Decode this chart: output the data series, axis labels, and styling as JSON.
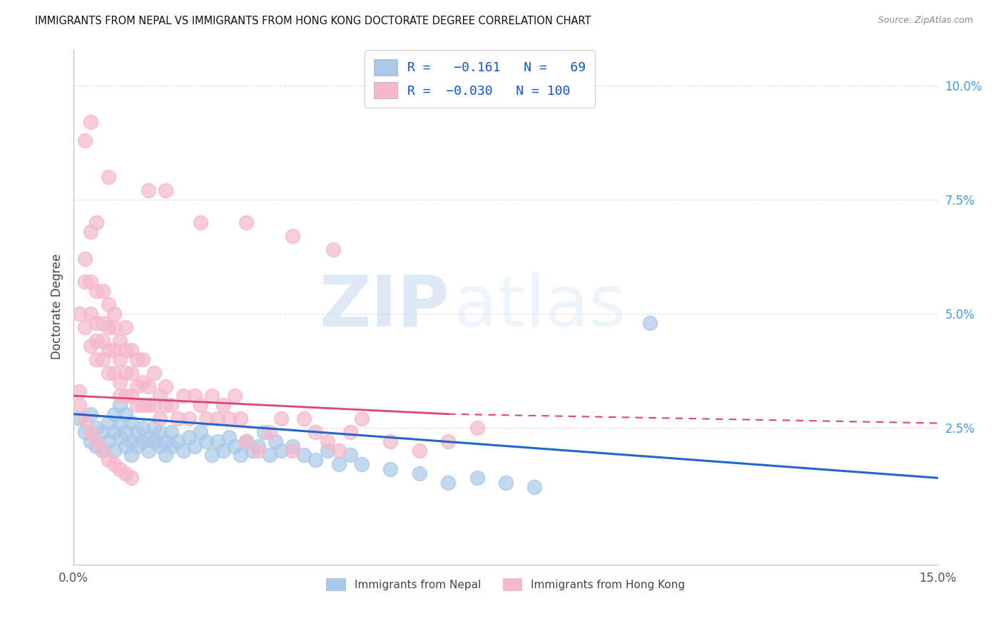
{
  "title": "IMMIGRANTS FROM NEPAL VS IMMIGRANTS FROM HONG KONG DOCTORATE DEGREE CORRELATION CHART",
  "source": "Source: ZipAtlas.com",
  "ylabel": "Doctorate Degree",
  "ytick_labels": [
    "2.5%",
    "5.0%",
    "7.5%",
    "10.0%"
  ],
  "ytick_values": [
    0.025,
    0.05,
    0.075,
    0.1
  ],
  "xlim": [
    0.0,
    0.15
  ],
  "ylim": [
    -0.005,
    0.108
  ],
  "color_nepal": "#aac9e8",
  "color_hongkong": "#f5b8cc",
  "trendline_nepal_color": "#2266cc",
  "trendline_hongkong_color": "#dd4477",
  "watermark_zip": "ZIP",
  "watermark_atlas": "atlas",
  "nepal_scatter": [
    [
      0.001,
      0.027
    ],
    [
      0.002,
      0.024
    ],
    [
      0.003,
      0.022
    ],
    [
      0.003,
      0.028
    ],
    [
      0.004,
      0.025
    ],
    [
      0.004,
      0.021
    ],
    [
      0.005,
      0.024
    ],
    [
      0.005,
      0.02
    ],
    [
      0.006,
      0.026
    ],
    [
      0.006,
      0.022
    ],
    [
      0.007,
      0.028
    ],
    [
      0.007,
      0.024
    ],
    [
      0.007,
      0.02
    ],
    [
      0.008,
      0.026
    ],
    [
      0.008,
      0.023
    ],
    [
      0.008,
      0.03
    ],
    [
      0.009,
      0.028
    ],
    [
      0.009,
      0.024
    ],
    [
      0.009,
      0.021
    ],
    [
      0.01,
      0.026
    ],
    [
      0.01,
      0.022
    ],
    [
      0.01,
      0.019
    ],
    [
      0.011,
      0.024
    ],
    [
      0.011,
      0.021
    ],
    [
      0.012,
      0.025
    ],
    [
      0.012,
      0.022
    ],
    [
      0.013,
      0.023
    ],
    [
      0.013,
      0.02
    ],
    [
      0.014,
      0.022
    ],
    [
      0.014,
      0.025
    ],
    [
      0.015,
      0.021
    ],
    [
      0.015,
      0.024
    ],
    [
      0.016,
      0.022
    ],
    [
      0.016,
      0.019
    ],
    [
      0.017,
      0.024
    ],
    [
      0.017,
      0.021
    ],
    [
      0.018,
      0.022
    ],
    [
      0.019,
      0.02
    ],
    [
      0.02,
      0.023
    ],
    [
      0.021,
      0.021
    ],
    [
      0.022,
      0.024
    ],
    [
      0.023,
      0.022
    ],
    [
      0.024,
      0.019
    ],
    [
      0.025,
      0.022
    ],
    [
      0.026,
      0.02
    ],
    [
      0.027,
      0.023
    ],
    [
      0.028,
      0.021
    ],
    [
      0.029,
      0.019
    ],
    [
      0.03,
      0.022
    ],
    [
      0.031,
      0.02
    ],
    [
      0.032,
      0.021
    ],
    [
      0.033,
      0.024
    ],
    [
      0.034,
      0.019
    ],
    [
      0.035,
      0.022
    ],
    [
      0.036,
      0.02
    ],
    [
      0.038,
      0.021
    ],
    [
      0.04,
      0.019
    ],
    [
      0.042,
      0.018
    ],
    [
      0.044,
      0.02
    ],
    [
      0.046,
      0.017
    ],
    [
      0.048,
      0.019
    ],
    [
      0.05,
      0.017
    ],
    [
      0.055,
      0.016
    ],
    [
      0.06,
      0.015
    ],
    [
      0.065,
      0.013
    ],
    [
      0.07,
      0.014
    ],
    [
      0.075,
      0.013
    ],
    [
      0.08,
      0.012
    ],
    [
      0.1,
      0.048
    ]
  ],
  "hongkong_scatter": [
    [
      0.001,
      0.033
    ],
    [
      0.001,
      0.05
    ],
    [
      0.002,
      0.062
    ],
    [
      0.002,
      0.057
    ],
    [
      0.002,
      0.047
    ],
    [
      0.003,
      0.05
    ],
    [
      0.003,
      0.057
    ],
    [
      0.003,
      0.043
    ],
    [
      0.003,
      0.068
    ],
    [
      0.004,
      0.04
    ],
    [
      0.004,
      0.044
    ],
    [
      0.004,
      0.048
    ],
    [
      0.004,
      0.055
    ],
    [
      0.005,
      0.04
    ],
    [
      0.005,
      0.044
    ],
    [
      0.005,
      0.048
    ],
    [
      0.005,
      0.055
    ],
    [
      0.006,
      0.037
    ],
    [
      0.006,
      0.042
    ],
    [
      0.006,
      0.047
    ],
    [
      0.006,
      0.052
    ],
    [
      0.007,
      0.037
    ],
    [
      0.007,
      0.042
    ],
    [
      0.007,
      0.047
    ],
    [
      0.007,
      0.05
    ],
    [
      0.008,
      0.035
    ],
    [
      0.008,
      0.04
    ],
    [
      0.008,
      0.044
    ],
    [
      0.008,
      0.032
    ],
    [
      0.009,
      0.032
    ],
    [
      0.009,
      0.037
    ],
    [
      0.009,
      0.042
    ],
    [
      0.009,
      0.047
    ],
    [
      0.01,
      0.032
    ],
    [
      0.01,
      0.037
    ],
    [
      0.01,
      0.042
    ],
    [
      0.011,
      0.03
    ],
    [
      0.011,
      0.034
    ],
    [
      0.011,
      0.04
    ],
    [
      0.012,
      0.03
    ],
    [
      0.012,
      0.035
    ],
    [
      0.012,
      0.04
    ],
    [
      0.013,
      0.03
    ],
    [
      0.013,
      0.034
    ],
    [
      0.014,
      0.03
    ],
    [
      0.014,
      0.037
    ],
    [
      0.015,
      0.032
    ],
    [
      0.015,
      0.027
    ],
    [
      0.016,
      0.03
    ],
    [
      0.016,
      0.034
    ],
    [
      0.017,
      0.03
    ],
    [
      0.018,
      0.027
    ],
    [
      0.019,
      0.032
    ],
    [
      0.02,
      0.027
    ],
    [
      0.021,
      0.032
    ],
    [
      0.022,
      0.03
    ],
    [
      0.023,
      0.027
    ],
    [
      0.024,
      0.032
    ],
    [
      0.025,
      0.027
    ],
    [
      0.026,
      0.03
    ],
    [
      0.027,
      0.027
    ],
    [
      0.028,
      0.032
    ],
    [
      0.029,
      0.027
    ],
    [
      0.03,
      0.022
    ],
    [
      0.032,
      0.02
    ],
    [
      0.034,
      0.024
    ],
    [
      0.036,
      0.027
    ],
    [
      0.038,
      0.02
    ],
    [
      0.04,
      0.027
    ],
    [
      0.042,
      0.024
    ],
    [
      0.044,
      0.022
    ],
    [
      0.046,
      0.02
    ],
    [
      0.048,
      0.024
    ],
    [
      0.05,
      0.027
    ],
    [
      0.055,
      0.022
    ],
    [
      0.06,
      0.02
    ],
    [
      0.065,
      0.022
    ],
    [
      0.07,
      0.025
    ],
    [
      0.002,
      0.088
    ],
    [
      0.006,
      0.08
    ],
    [
      0.013,
      0.077
    ],
    [
      0.022,
      0.07
    ],
    [
      0.004,
      0.07
    ],
    [
      0.016,
      0.077
    ],
    [
      0.03,
      0.07
    ],
    [
      0.038,
      0.067
    ],
    [
      0.045,
      0.064
    ],
    [
      0.001,
      0.03
    ],
    [
      0.002,
      0.027
    ],
    [
      0.003,
      0.024
    ],
    [
      0.004,
      0.022
    ],
    [
      0.005,
      0.02
    ],
    [
      0.006,
      0.018
    ],
    [
      0.007,
      0.017
    ],
    [
      0.008,
      0.016
    ],
    [
      0.009,
      0.015
    ],
    [
      0.01,
      0.014
    ],
    [
      0.003,
      0.092
    ]
  ],
  "nepal_trend": [
    0.0,
    0.15,
    0.028,
    0.014
  ],
  "hongkong_trend_solid": [
    0.0,
    0.065,
    0.032,
    0.028
  ],
  "hongkong_trend_dash": [
    0.065,
    0.15,
    0.028,
    0.026
  ]
}
